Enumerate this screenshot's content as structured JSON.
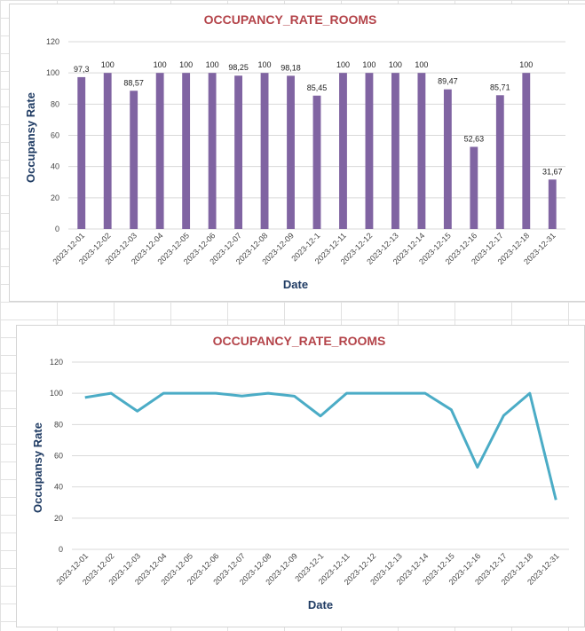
{
  "colors": {
    "bar": "#8064a2",
    "line": "#4bacc6",
    "gridline": "#d9d9d9",
    "title": "#b4444a",
    "axis_title": "#1f3b63",
    "sheet_grid": "#e1e1e1"
  },
  "chart_data": [
    {
      "type": "bar",
      "title": "OCCUPANCY_RATE_ROOMS",
      "xlabel": "Date",
      "ylabel": "Occupansy Rate",
      "ylim": [
        0,
        120
      ],
      "yticks": [
        "0",
        "20",
        "40",
        "60",
        "80",
        "100",
        "120"
      ],
      "grid": true,
      "legend": "none",
      "categories": [
        "2023-12-01",
        "2023-12-02",
        "2023-12-03",
        "2023-12-04",
        "2023-12-05",
        "2023-12-06",
        "2023-12-07",
        "2023-12-08",
        "2023-12-09",
        "2023-12-1",
        "2023-12-11",
        "2023-12-12",
        "2023-12-13",
        "2023-12-14",
        "2023-12-15",
        "2023-12-16",
        "2023-12-17",
        "2023-12-18",
        "2023-12-31"
      ],
      "values": [
        97.3,
        100,
        88.57,
        100,
        100,
        100,
        98.25,
        100,
        98.18,
        85.45,
        100,
        100,
        100,
        100,
        89.47,
        52.63,
        85.71,
        100,
        31.67
      ],
      "data_labels": [
        "97,3",
        "100",
        "88,57",
        "100",
        "100",
        "100",
        "98,25",
        "100",
        "98,18",
        "85,45",
        "100",
        "100",
        "100",
        "100",
        "89,47",
        "52,63",
        "85,71",
        "100",
        "31,67"
      ]
    },
    {
      "type": "line",
      "title": "OCCUPANCY_RATE_ROOMS",
      "xlabel": "Date",
      "ylabel": "Occupansy Rate",
      "ylim": [
        0,
        120
      ],
      "yticks": [
        "0",
        "20",
        "40",
        "60",
        "80",
        "100",
        "120"
      ],
      "grid": true,
      "legend": "none",
      "categories": [
        "2023-12-01",
        "2023-12-02",
        "2023-12-03",
        "2023-12-04",
        "2023-12-05",
        "2023-12-06",
        "2023-12-07",
        "2023-12-08",
        "2023-12-09",
        "2023-12-1",
        "2023-12-11",
        "2023-12-12",
        "2023-12-13",
        "2023-12-14",
        "2023-12-15",
        "2023-12-16",
        "2023-12-17",
        "2023-12-18",
        "2023-12-31"
      ],
      "values": [
        97.3,
        100,
        88.57,
        100,
        100,
        100,
        98.25,
        100,
        98.18,
        85.45,
        100,
        100,
        100,
        100,
        89.47,
        52.63,
        85.71,
        100,
        31.67
      ]
    }
  ]
}
